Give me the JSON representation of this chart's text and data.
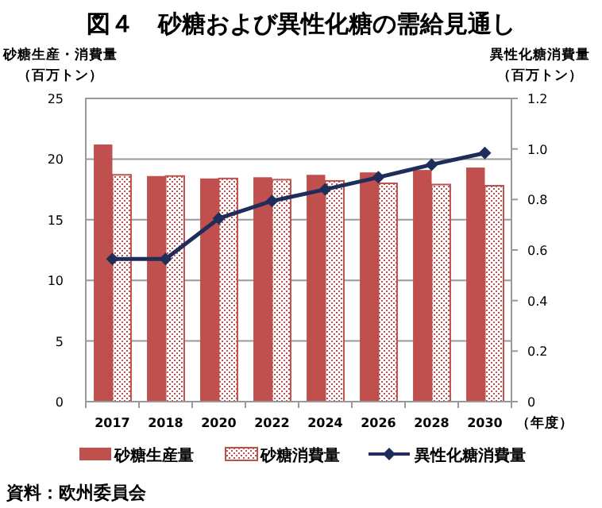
{
  "chart_data": {
    "type": "bar",
    "title": "図４　砂糖および異性化糖の需給見通し",
    "ylabel": "砂糖生産・消費量（百万トン）",
    "y2label": "異性化糖消費量（百万トン）",
    "xlabel": "（年度）",
    "annotations": [
      "資料：欧州委員会"
    ],
    "categories": [
      "2017",
      "2018",
      "2020",
      "2022",
      "2024",
      "2026",
      "2028",
      "2030"
    ],
    "series": [
      {
        "name": "砂糖生産量",
        "color": "#c0504d",
        "values": [
          21.2,
          18.6,
          18.4,
          18.5,
          18.7,
          18.9,
          19.1,
          19.3
        ]
      },
      {
        "name": "砂糖消費量",
        "color": "#c0504d",
        "values": [
          18.7,
          18.6,
          18.4,
          18.3,
          18.2,
          18.0,
          17.9,
          17.8
        ]
      },
      {
        "name": "異性化糖消費量",
        "type": "line",
        "axis": "y2",
        "color": "#1f2d5a",
        "marker": "diamond",
        "values": [
          0.565,
          0.565,
          0.725,
          0.794,
          0.84,
          0.888,
          0.938,
          0.984
        ]
      }
    ],
    "ylim": [
      0,
      25
    ],
    "yticks": [
      0,
      5,
      10,
      15,
      20,
      25
    ],
    "y2lim": [
      0,
      1.2
    ],
    "y2ticks": [
      0,
      {
        "value": 0.2,
        "label": "0.2"
      },
      {
        "value": 0.4,
        "label": "0.4"
      },
      {
        "value": 0.6,
        "label": "0.6"
      },
      {
        "value": 0.8,
        "label": "0.8"
      },
      {
        "value": 1,
        "label": "1.0"
      },
      {
        "value": 1.2,
        "label": "1.2"
      }
    ],
    "grid": "y",
    "legend": "bottom"
  }
}
